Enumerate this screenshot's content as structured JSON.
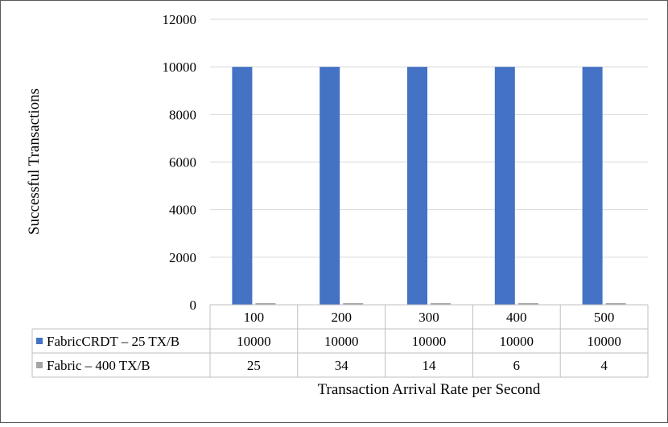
{
  "chart_data": {
    "type": "bar",
    "title": "",
    "xlabel": "Transaction Arrival Rate per Second",
    "ylabel": "Successful Transactions",
    "ylim": [
      0,
      12000
    ],
    "yticks": [
      "0",
      "2000",
      "4000",
      "6000",
      "8000",
      "10000",
      "12000"
    ],
    "categories": [
      "100",
      "200",
      "300",
      "400",
      "500"
    ],
    "series": [
      {
        "name": "FabricCRDT – 25 TX/B",
        "color": "#4472C4",
        "values": [
          10000,
          10000,
          10000,
          10000,
          10000
        ],
        "table_values": [
          "10000",
          "10000",
          "10000",
          "10000",
          "10000"
        ]
      },
      {
        "name": "Fabric – 400 TX/B",
        "color": "#A5A5A5",
        "values": [
          25,
          34,
          14,
          6,
          4
        ],
        "table_values": [
          "25",
          "34",
          "14",
          "6",
          "4"
        ]
      }
    ],
    "grid": true,
    "legend": "data-table"
  }
}
